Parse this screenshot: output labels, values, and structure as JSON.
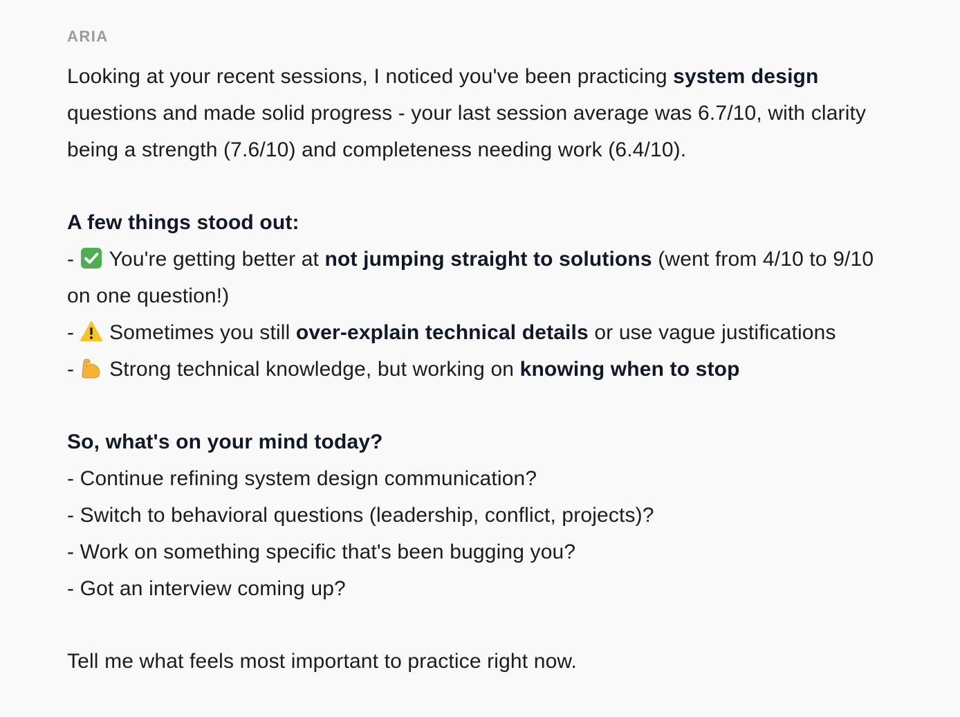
{
  "sender": "ARIA",
  "paragraphs": [
    {
      "lines": [
        [
          {
            "t": "Looking at your recent sessions, I noticed you've been practicing "
          },
          {
            "t": "system design",
            "b": true
          }
        ],
        [
          {
            "t": "questions and made solid progress - your last session average was 6.7/10, with clarity"
          }
        ],
        [
          {
            "t": "being a strength (7.6/10) and completeness needing work (6.4/10)."
          }
        ]
      ]
    },
    {
      "lines": [
        [
          {
            "t": "A few things stood out:",
            "b": true
          }
        ],
        [
          {
            "t": "- "
          },
          {
            "icon": "check-mark-emoji"
          },
          {
            "t": " You're getting better at "
          },
          {
            "t": "not jumping straight to solutions",
            "b": true
          },
          {
            "t": " (went from 4/10 to 9/10"
          }
        ],
        [
          {
            "t": "on one question!)"
          }
        ],
        [
          {
            "t": "- "
          },
          {
            "icon": "warning-emoji"
          },
          {
            "t": " Sometimes you still "
          },
          {
            "t": "over-explain technical details",
            "b": true
          },
          {
            "t": " or use vague justifications"
          }
        ],
        [
          {
            "t": "- "
          },
          {
            "icon": "flexed-biceps-emoji"
          },
          {
            "t": " Strong technical knowledge, but working on "
          },
          {
            "t": "knowing when to stop",
            "b": true
          }
        ]
      ]
    },
    {
      "lines": [
        [
          {
            "t": "So, what's on your mind today?",
            "b": true
          }
        ],
        [
          {
            "t": "- Continue refining system design communication?"
          }
        ],
        [
          {
            "t": "- Switch to behavioral questions (leadership, conflict, projects)?"
          }
        ],
        [
          {
            "t": "- Work on something specific that's been bugging you?"
          }
        ],
        [
          {
            "t": "- Got an interview coming up?"
          }
        ]
      ]
    },
    {
      "lines": [
        [
          {
            "t": "Tell me what feels most important to practice right now."
          }
        ]
      ]
    }
  ]
}
